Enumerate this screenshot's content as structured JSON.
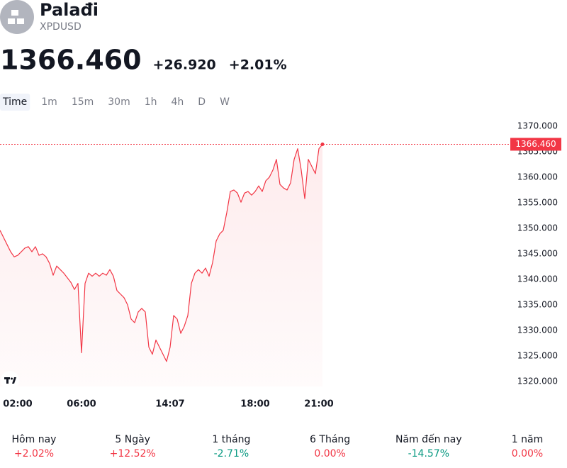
{
  "header": {
    "title": "Palađi",
    "symbol": "XPDUSD",
    "price": "1366.460",
    "change": "+26.920",
    "change_percent": "+2.01%",
    "color": "#f23645"
  },
  "tabs": {
    "items": [
      "Time",
      "1m",
      "15m",
      "30m",
      "1h",
      "4h",
      "D",
      "W"
    ],
    "active": 0
  },
  "chart_data": {
    "type": "line",
    "color": "#f23645",
    "area": true,
    "categories": [
      null,
      null,
      null,
      null,
      null,
      "02:00",
      null,
      null,
      null,
      null,
      null,
      null,
      null,
      null,
      null,
      null,
      null,
      null,
      null,
      null,
      null,
      null,
      null,
      "06:00",
      null,
      null,
      null,
      null,
      null,
      null,
      null,
      null,
      null,
      null,
      null,
      null,
      null,
      null,
      null,
      null,
      null,
      null,
      null,
      null,
      null,
      null,
      null,
      null,
      "14:07",
      null,
      null,
      null,
      null,
      null,
      null,
      null,
      null,
      null,
      null,
      null,
      null,
      null,
      null,
      null,
      null,
      null,
      null,
      null,
      null,
      null,
      null,
      null,
      "18:00",
      null,
      null,
      null,
      null,
      null,
      null,
      null,
      null,
      null,
      null,
      null,
      null,
      null,
      null,
      null,
      null,
      null,
      "21:00",
      null
    ],
    "values": [
      1349.6,
      1348.2,
      1346.8,
      1345.4,
      1344.4,
      1344.7,
      1345.4,
      1346.1,
      1346.4,
      1345.4,
      1346.4,
      1344.7,
      1345,
      1344.4,
      1343.1,
      1340.8,
      1342.6,
      1341.9,
      1341.2,
      1340.3,
      1339.4,
      1338,
      1339.2,
      1325.6,
      1339.2,
      1341.2,
      1340.6,
      1341.2,
      1340.6,
      1341.2,
      1340.8,
      1341.9,
      1340.6,
      1337.8,
      1337.1,
      1336.4,
      1335,
      1332.2,
      1331.5,
      1333.6,
      1334.3,
      1333.6,
      1326.7,
      1325.3,
      1328.1,
      1326.7,
      1325.3,
      1323.9,
      1326.7,
      1332.9,
      1332.2,
      1329.4,
      1330.8,
      1332.9,
      1339.2,
      1341.2,
      1341.9,
      1341.2,
      1342.2,
      1340.6,
      1343.3,
      1347.5,
      1348.9,
      1349.6,
      1353.1,
      1357.2,
      1357.5,
      1356.9,
      1355.1,
      1356.9,
      1357.2,
      1356.5,
      1357.2,
      1358.3,
      1357.2,
      1359.3,
      1360,
      1361.4,
      1363.5,
      1358.6,
      1357.9,
      1357.5,
      1358.9,
      1363.5,
      1365.6,
      1361.4,
      1355.8,
      1363.5,
      1362.1,
      1360.7,
      1365.6,
      1366.46
    ],
    "ylim": [
      1319,
      1372.5
    ],
    "yticks": [
      {
        "value": 1320,
        "label": "1320.000"
      },
      {
        "value": 1325,
        "label": "1325.000"
      },
      {
        "value": 1330,
        "label": "1330.000"
      },
      {
        "value": 1335,
        "label": "1335.000"
      },
      {
        "value": 1340,
        "label": "1340.000"
      },
      {
        "value": 1345,
        "label": "1345.000"
      },
      {
        "value": 1350,
        "label": "1350.000"
      },
      {
        "value": 1355,
        "label": "1355.000"
      },
      {
        "value": 1360,
        "label": "1360.000"
      },
      {
        "value": 1365,
        "label": "1365.000"
      },
      {
        "value": 1370,
        "label": "1370.000"
      }
    ]
  },
  "performance": [
    {
      "label": "Hôm nay",
      "value": "+2.02%",
      "color": "#f23645"
    },
    {
      "label": "5 Ngày",
      "value": "+12.52%",
      "color": "#f23645"
    },
    {
      "label": "1 tháng",
      "value": "-2.71%",
      "color": "#089981"
    },
    {
      "label": "6 Tháng",
      "value": "0.00%",
      "color": "#f23645"
    },
    {
      "label": "Năm đến nay",
      "value": "-14.57%",
      "color": "#089981"
    },
    {
      "label": "1 năm",
      "value": "0.00%",
      "color": "#f23645"
    }
  ]
}
